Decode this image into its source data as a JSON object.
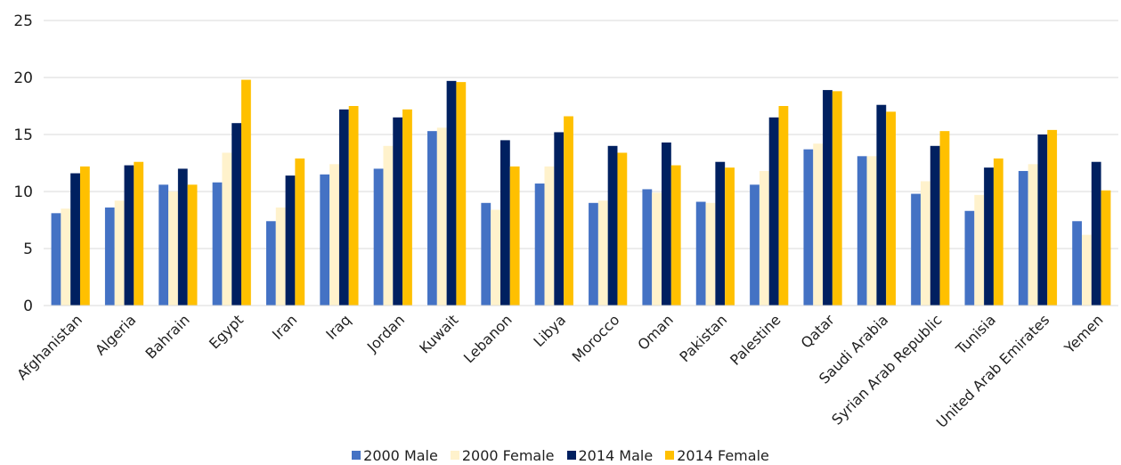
{
  "chart_data": {
    "type": "bar",
    "title": "",
    "xlabel": "",
    "ylabel": "",
    "ylim": [
      0,
      25
    ],
    "yticks": [
      0,
      5,
      10,
      15,
      20,
      25
    ],
    "grid": true,
    "legend_position": "bottom",
    "categories": [
      "Afghanistan",
      "Algeria",
      "Bahrain",
      "Egypt",
      "Iran",
      "Iraq",
      "Jordan",
      "Kuwait",
      "Lebanon",
      "Libya",
      "Morocco",
      "Oman",
      "Pakistan",
      "Palestine",
      "Qatar",
      "Saudi Arabia",
      "Syrian Arab Republic",
      "Tunisia",
      "United Arab Emirates",
      "Yemen"
    ],
    "series": [
      {
        "name": "2000 Male",
        "color": "#4472c4",
        "values": [
          8.1,
          8.6,
          10.6,
          10.8,
          7.4,
          11.5,
          12.0,
          15.3,
          9.0,
          10.7,
          9.0,
          10.2,
          9.1,
          10.6,
          13.7,
          13.1,
          9.8,
          8.3,
          11.8,
          7.4
        ]
      },
      {
        "name": "2000 Female",
        "color": "#fff2cc",
        "values": [
          8.5,
          9.2,
          10.0,
          13.4,
          8.6,
          12.4,
          14.0,
          15.6,
          8.4,
          12.2,
          9.2,
          9.9,
          9.0,
          11.8,
          14.2,
          13.1,
          10.9,
          9.7,
          12.4,
          6.2
        ]
      },
      {
        "name": "2014 Male",
        "color": "#002060",
        "values": [
          11.6,
          12.3,
          12.0,
          16.0,
          11.4,
          17.2,
          16.5,
          19.7,
          14.5,
          15.2,
          14.0,
          14.3,
          12.6,
          16.5,
          18.9,
          17.6,
          14.0,
          12.1,
          15.0,
          12.6
        ]
      },
      {
        "name": "2014 Female",
        "color": "#ffc000",
        "values": [
          12.2,
          12.6,
          10.6,
          19.8,
          12.9,
          17.5,
          17.2,
          19.6,
          12.2,
          16.6,
          13.4,
          12.3,
          12.1,
          17.5,
          18.8,
          17.0,
          15.3,
          12.9,
          15.4,
          10.1
        ]
      }
    ]
  }
}
